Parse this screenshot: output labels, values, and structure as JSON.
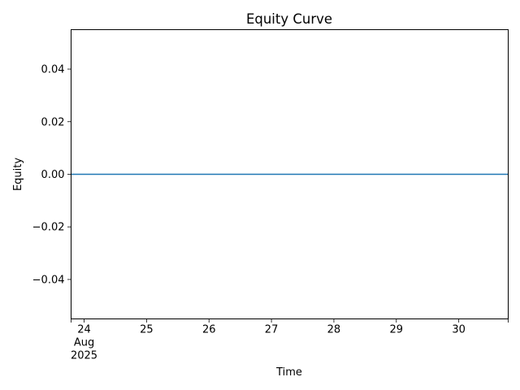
{
  "chart_data": {
    "type": "line",
    "title": "Equity Curve",
    "xlabel": "Time",
    "ylabel": "Equity",
    "x_axis_type": "date",
    "xlim": [
      "2025-08-23T19:00",
      "2025-08-30T19:00"
    ],
    "ylim": [
      -0.055,
      0.055
    ],
    "x_ticks": [
      {
        "value": "2025-08-24",
        "label": "24",
        "sublabels": [
          "Aug",
          "2025"
        ]
      },
      {
        "value": "2025-08-25",
        "label": "25"
      },
      {
        "value": "2025-08-26",
        "label": "26"
      },
      {
        "value": "2025-08-27",
        "label": "27"
      },
      {
        "value": "2025-08-28",
        "label": "28"
      },
      {
        "value": "2025-08-29",
        "label": "29"
      },
      {
        "value": "2025-08-30",
        "label": "30"
      }
    ],
    "x_minor_ticks": [
      "2025-08-23T19:00",
      "2025-08-30T19:00"
    ],
    "y_ticks": [
      {
        "value": 0.04,
        "label": "0.04"
      },
      {
        "value": 0.02,
        "label": "0.02"
      },
      {
        "value": 0.0,
        "label": "0.00"
      },
      {
        "value": -0.02,
        "label": "−0.02"
      },
      {
        "value": -0.04,
        "label": "−0.04"
      }
    ],
    "series": [
      {
        "color": "#1f77b4",
        "x": [
          "2025-08-23T19:00",
          "2025-08-30T19:00"
        ],
        "y": [
          0,
          0
        ]
      }
    ],
    "grid": false,
    "legend": "none",
    "axis_color": "#000000"
  }
}
